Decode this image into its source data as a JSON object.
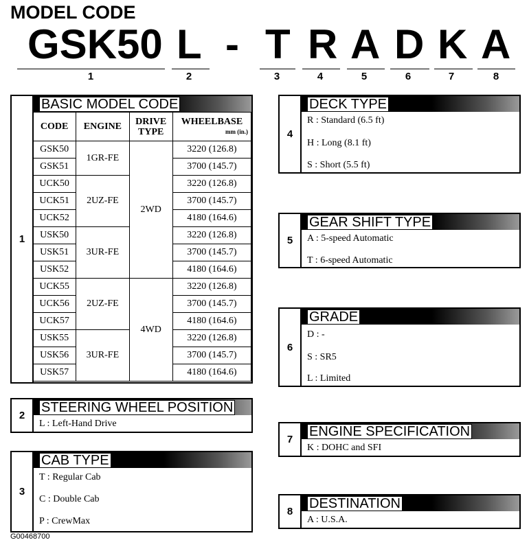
{
  "title": "MODEL CODE",
  "code_parts": [
    "GSK50",
    "L",
    "-",
    "T",
    "R",
    "A",
    "D",
    "K",
    "A"
  ],
  "position_numbers": [
    "1",
    "2",
    "3",
    "4",
    "5",
    "6",
    "7",
    "8"
  ],
  "basic": {
    "num": "1",
    "title": "BASIC MODEL CODE",
    "headers": {
      "code": "CODE",
      "engine": "ENGINE",
      "drive": "DRIVE TYPE",
      "wheelbase": "WHEELBASE",
      "unit": "mm (in.)"
    },
    "codes": [
      "GSK50",
      "GSK51",
      "UCK50",
      "UCK51",
      "UCK52",
      "USK50",
      "USK51",
      "USK52",
      "UCK55",
      "UCK56",
      "UCK57",
      "USK55",
      "USK56",
      "USK57"
    ],
    "engines": [
      "1GR-FE",
      "2UZ-FE",
      "3UR-FE",
      "2UZ-FE",
      "3UR-FE"
    ],
    "drives": [
      "2WD",
      "4WD"
    ],
    "wheelbases": [
      "3220 (126.8)",
      "3700 (145.7)",
      "3220 (126.8)",
      "3700 (145.7)",
      "4180 (164.6)",
      "3220 (126.8)",
      "3700 (145.7)",
      "4180 (164.6)",
      "3220 (126.8)",
      "3700 (145.7)",
      "4180 (164.6)",
      "3220 (126.8)",
      "3700 (145.7)",
      "4180 (164.6)"
    ]
  },
  "steering": {
    "num": "2",
    "title": "STEERING WHEEL POSITION",
    "items": [
      "L : Left-Hand Drive"
    ]
  },
  "cab": {
    "num": "3",
    "title": "CAB TYPE",
    "items": [
      "T : Regular Cab",
      "C : Double Cab",
      "P : CrewMax"
    ]
  },
  "deck": {
    "num": "4",
    "title": "DECK TYPE",
    "items": [
      "R : Standard (6.5 ft)",
      "H : Long (8.1 ft)",
      "S : Short (5.5 ft)"
    ]
  },
  "gear": {
    "num": "5",
    "title": "GEAR SHIFT TYPE",
    "items": [
      "A : 5-speed Automatic",
      "T : 6-speed Automatic"
    ]
  },
  "grade": {
    "num": "6",
    "title": "GRADE",
    "items": [
      "D : -",
      "S : SR5",
      "L : Limited"
    ]
  },
  "engine": {
    "num": "7",
    "title": "ENGINE SPECIFICATION",
    "items": [
      "K : DOHC and SFI"
    ]
  },
  "destination": {
    "num": "8",
    "title": "DESTINATION",
    "items": [
      "A : U.S.A."
    ]
  },
  "figure_id": "G00468700"
}
